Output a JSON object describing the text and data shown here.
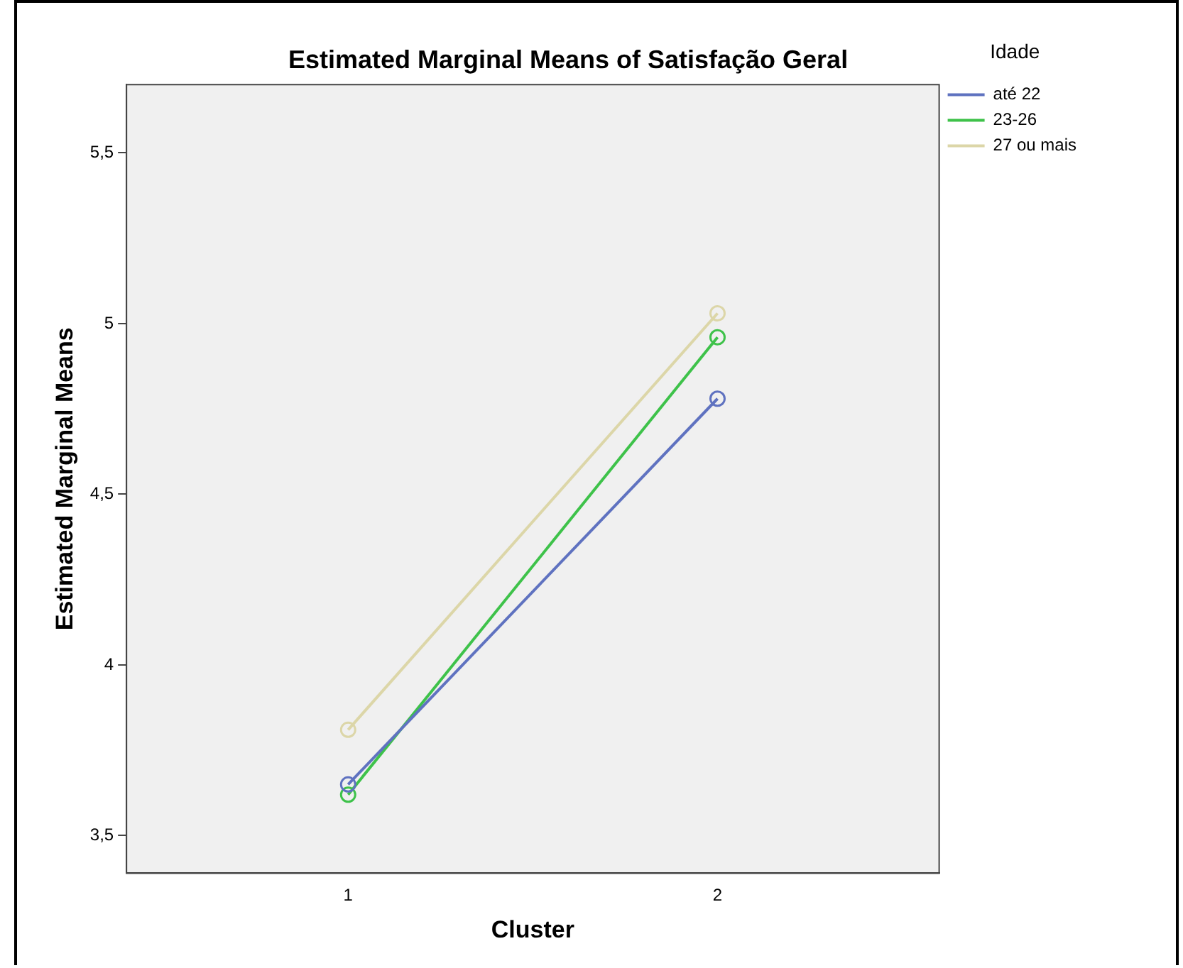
{
  "chart_data": {
    "type": "line",
    "title": "Estimated Marginal Means of Satisfação Geral",
    "xlabel": "Cluster",
    "ylabel": "Estimated Marginal Means",
    "legend_title": "Idade",
    "x": [
      1,
      2
    ],
    "xlim": [
      0.4,
      2.6
    ],
    "xticks": [
      1,
      2
    ],
    "ylim": [
      3.39,
      5.7
    ],
    "yticks": [
      {
        "value": 3.5,
        "label": "3,5"
      },
      4,
      {
        "value": 4.5,
        "label": "4,5"
      },
      5,
      {
        "value": 5.5,
        "label": "5,5"
      }
    ],
    "series": [
      {
        "name": "até 22",
        "color": "#5f72c0",
        "values": [
          3.65,
          4.78
        ]
      },
      {
        "name": "23-26",
        "color": "#3ec24a",
        "values": [
          3.62,
          4.96
        ]
      },
      {
        "name": "27 ou mais",
        "color": "#dcd6a8",
        "values": [
          3.81,
          5.03
        ]
      }
    ],
    "marker": "circle",
    "line_style": "solid",
    "grid": false,
    "legend": "top right"
  }
}
